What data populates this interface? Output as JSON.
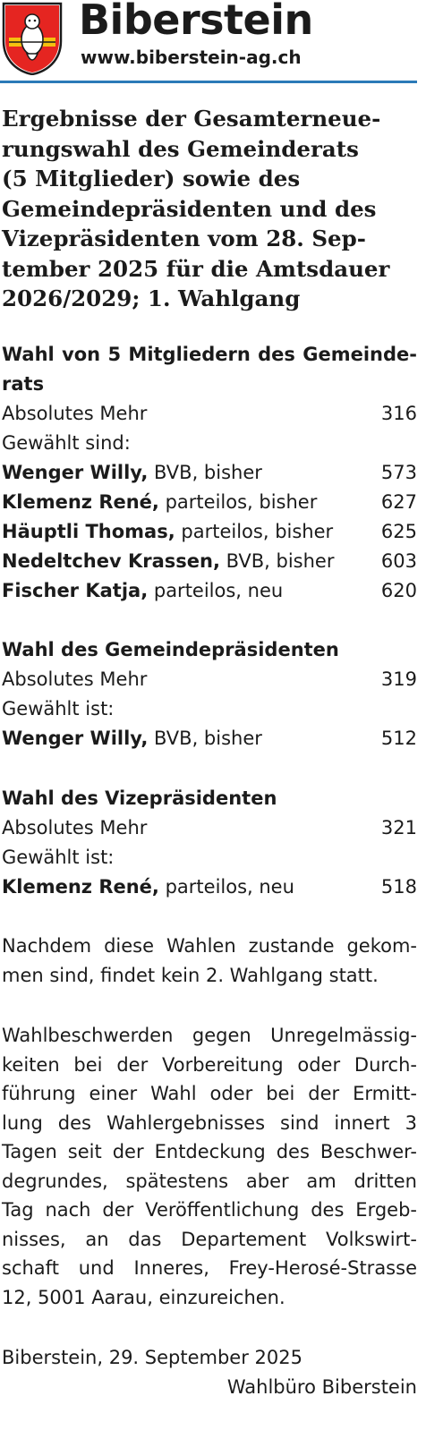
{
  "header": {
    "town": "Biberstein",
    "url": "www.biberstein-ag.ch",
    "accent_color": "#2b7ab8",
    "crest_icon": "biberstein-coat-of-arms-icon"
  },
  "title_lines": [
    "Ergebnisse der Gesamterneue-",
    "rungswahl des Gemeinderats",
    "(5 Mitglieder) sowie des",
    "Gemeindepräsidenten und des",
    "Vizepräsidenten vom 28. Sep-",
    "tember 2025 für die Amtsdauer",
    "2026/2029; 1. Wahlgang"
  ],
  "council": {
    "heading_lines": [
      "Wahl von 5 Mitgliedern des Gemeinde-",
      "rats"
    ],
    "majority_label": "Absolutes Mehr",
    "majority_value": "316",
    "elected_label": "Gewählt sind:",
    "members": [
      {
        "name": "Wenger Willy,",
        "info": " BVB, bisher",
        "votes": "573"
      },
      {
        "name": "Klemenz René,",
        "info": " parteilos, bisher",
        "votes": "627"
      },
      {
        "name": "Häuptli Thomas,",
        "info": " parteilos, bisher",
        "votes": "625"
      },
      {
        "name": "Nedeltchev Krassen,",
        "info": " BVB, bisher",
        "votes": "603"
      },
      {
        "name": "Fischer Katja,",
        "info": " parteilos, neu",
        "votes": "620"
      }
    ]
  },
  "president": {
    "heading": "Wahl des Gemeindepräsidenten",
    "majority_label": "Absolutes Mehr",
    "majority_value": "319",
    "elected_label": "Gewählt ist:",
    "name": "Wenger Willy,",
    "info": " BVB, bisher",
    "votes": "512"
  },
  "vice": {
    "heading": "Wahl des Vizepräsidenten",
    "majority_label": "Absolutes Mehr",
    "majority_value": "321",
    "elected_label": "Gewählt ist:",
    "name": "Klemenz René,",
    "info": " parteilos, neu",
    "votes": "518"
  },
  "note_lines": [
    "Nachdem diese Wahlen zustande gekom-",
    "men sind, findet kein 2. Wahlgang statt."
  ],
  "complaint_lines": [
    "Wahlbeschwerden gegen Unregelmässig-",
    "keiten bei der Vorbereitung oder Durch-",
    "führung einer Wahl oder bei der Ermitt-",
    "lung des Wahlergebnisses sind innert 3",
    "Tagen seit der Entdeckung des Beschwer-",
    "degrundes, spätestens aber am dritten",
    "Tag nach der Veröffentlichung des Ergeb-",
    "nisses, an das Departement Volkswirt-",
    "schaft und Inneres, Frey-Herosé-Strasse",
    "12, 5001 Aarau, einzureichen."
  ],
  "footer": {
    "place_date": "Biberstein, 29. September 2025",
    "office": "Wahlbüro Biberstein"
  }
}
